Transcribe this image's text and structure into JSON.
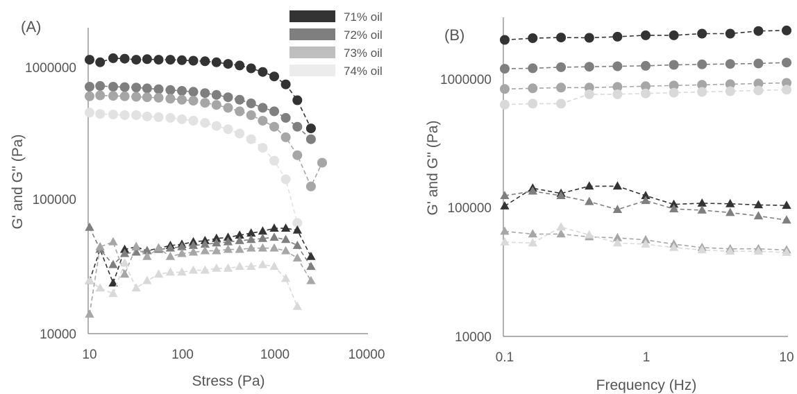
{
  "chart_data": [
    {
      "type": "scatter",
      "panel_label": "(A)",
      "xlabel": "Stress (Pa)",
      "ylabel": "G' and G'' (Pa)",
      "x_scale": "log",
      "y_scale": "log",
      "xlim": [
        10,
        10000
      ],
      "ylim": [
        10000,
        2000000
      ],
      "x_ticks": [
        10,
        100,
        1000,
        10000
      ],
      "x_tick_labels": [
        "10",
        "100",
        "1000",
        "10000"
      ],
      "y_ticks": [
        10000,
        100000,
        1000000
      ],
      "y_tick_labels": [
        "10000",
        "100000",
        "1000000"
      ],
      "grid": false,
      "legend_position": "top-right",
      "legend": [
        "71% oil",
        "72% oil",
        "73% oil",
        "74% oil"
      ],
      "series": [
        {
          "name": "71% oil",
          "modulus": "G'",
          "marker": "circle",
          "color": "#333333",
          "x": [
            10,
            13,
            18,
            24,
            32,
            42,
            56,
            75,
            100,
            133,
            178,
            237,
            316,
            422,
            562,
            750,
            1000,
            1334,
            1780,
            2500
          ],
          "y": [
            1150000,
            1100000,
            1180000,
            1170000,
            1150000,
            1160000,
            1150000,
            1150000,
            1140000,
            1130000,
            1120000,
            1100000,
            1070000,
            1040000,
            990000,
            930000,
            860000,
            750000,
            570000,
            350000
          ]
        },
        {
          "name": "72% oil",
          "modulus": "G'",
          "marker": "circle",
          "color": "#7f7f7f",
          "x": [
            10,
            13,
            18,
            24,
            32,
            42,
            56,
            75,
            100,
            133,
            178,
            237,
            316,
            422,
            562,
            750,
            1000,
            1334,
            1780,
            2500
          ],
          "y": [
            720000,
            730000,
            720000,
            715000,
            710000,
            700000,
            690000,
            680000,
            670000,
            660000,
            645000,
            625000,
            600000,
            575000,
            540000,
            500000,
            470000,
            420000,
            360000,
            290000
          ]
        },
        {
          "name": "73% oil",
          "modulus": "G'",
          "marker": "circle",
          "color": "#a6a6a6",
          "x": [
            10,
            13,
            18,
            24,
            32,
            42,
            56,
            75,
            100,
            133,
            178,
            237,
            316,
            422,
            562,
            750,
            1000,
            1334,
            1780,
            2500,
            3300
          ],
          "y": [
            610000,
            620000,
            615000,
            610000,
            605000,
            600000,
            595000,
            585000,
            575000,
            565000,
            545000,
            525000,
            500000,
            470000,
            440000,
            400000,
            360000,
            300000,
            220000,
            128000,
            193000
          ]
        },
        {
          "name": "74% oil",
          "modulus": "G'",
          "marker": "circle",
          "color": "#e2e2e2",
          "x": [
            10,
            13,
            18,
            24,
            32,
            42,
            56,
            75,
            100,
            133,
            178,
            237,
            316,
            422,
            562,
            750,
            1000,
            1334,
            1780
          ],
          "y": [
            460000,
            450000,
            445000,
            440000,
            440000,
            430000,
            425000,
            420000,
            410000,
            400000,
            385000,
            365000,
            345000,
            320000,
            290000,
            250000,
            200000,
            145000,
            68000
          ]
        },
        {
          "name": "71% oil",
          "modulus": "G''",
          "marker": "triangle",
          "color": "#333333",
          "x": [
            10,
            13,
            18,
            24,
            32,
            42,
            56,
            75,
            100,
            133,
            178,
            237,
            316,
            422,
            562,
            750,
            1000,
            1334,
            1780,
            2500
          ],
          "y": [
            25000,
            43000,
            24000,
            43000,
            45000,
            42000,
            44000,
            46000,
            47000,
            49000,
            50000,
            52000,
            53000,
            55000,
            57000,
            59000,
            62000,
            62000,
            60000,
            38000
          ]
        },
        {
          "name": "72% oil",
          "modulus": "G''",
          "marker": "triangle",
          "color": "#7f7f7f",
          "x": [
            10,
            13,
            18,
            24,
            32,
            42,
            56,
            75,
            100,
            133,
            178,
            237,
            316,
            422,
            562,
            750,
            1000,
            1334,
            1780,
            2500
          ],
          "y": [
            63000,
            43000,
            33000,
            40000,
            41000,
            42000,
            43000,
            44000,
            45000,
            46000,
            47000,
            48000,
            49000,
            50000,
            51000,
            52000,
            53000,
            51000,
            46000,
            32000
          ]
        },
        {
          "name": "73% oil",
          "modulus": "G''",
          "marker": "triangle",
          "color": "#a6a6a6",
          "x": [
            10,
            13,
            18,
            24,
            32,
            42,
            56,
            75,
            100,
            133,
            178,
            237,
            316,
            422,
            562,
            750,
            1000,
            1334,
            1780,
            2500
          ],
          "y": [
            14000,
            45000,
            49000,
            28000,
            45000,
            38000,
            44000,
            38000,
            40000,
            41000,
            42000,
            42000,
            43000,
            43000,
            44000,
            44000,
            44000,
            42000,
            37000,
            25000
          ]
        },
        {
          "name": "74% oil",
          "modulus": "G''",
          "marker": "triangle",
          "color": "#d9d9d9",
          "x": [
            10,
            13,
            18,
            24,
            32,
            42,
            56,
            75,
            100,
            133,
            178,
            237,
            316,
            422,
            562,
            750,
            1000,
            1334,
            1780
          ],
          "y": [
            25000,
            22000,
            20000,
            34000,
            22000,
            25000,
            28000,
            29000,
            29000,
            30000,
            30000,
            31000,
            31000,
            32000,
            32000,
            33000,
            32000,
            26000,
            16000
          ]
        }
      ]
    },
    {
      "type": "scatter",
      "panel_label": "(B)",
      "xlabel": "Frequency (Hz)",
      "ylabel": "G' and G'' (Pa)",
      "x_scale": "log",
      "y_scale": "log",
      "xlim": [
        0.1,
        10
      ],
      "ylim": [
        10000,
        2800000
      ],
      "x_ticks": [
        0.1,
        1,
        10
      ],
      "x_tick_labels": [
        "0.1",
        "1",
        "10"
      ],
      "y_ticks": [
        10000,
        100000,
        1000000
      ],
      "y_tick_labels": [
        "10000",
        "100000",
        "1000000"
      ],
      "grid": false,
      "series": [
        {
          "name": "71% oil",
          "modulus": "G'",
          "marker": "circle",
          "color": "#333333",
          "x": [
            0.1,
            0.158,
            0.251,
            0.398,
            0.631,
            1,
            1.585,
            2.512,
            3.981,
            6.31,
            10
          ],
          "y": [
            1880000,
            1940000,
            1960000,
            1950000,
            1990000,
            2040000,
            2040000,
            2100000,
            2100000,
            2200000,
            2220000
          ]
        },
        {
          "name": "72% oil",
          "modulus": "G'",
          "marker": "circle",
          "color": "#7f7f7f",
          "x": [
            0.1,
            0.158,
            0.251,
            0.398,
            0.631,
            1,
            1.585,
            2.512,
            3.981,
            6.31,
            10
          ],
          "y": [
            1130000,
            1140000,
            1160000,
            1170000,
            1180000,
            1190000,
            1210000,
            1220000,
            1230000,
            1240000,
            1260000
          ]
        },
        {
          "name": "73% oil",
          "modulus": "G'",
          "marker": "circle",
          "color": "#a6a6a6",
          "x": [
            0.1,
            0.158,
            0.251,
            0.398,
            0.631,
            1,
            1.585,
            2.512,
            3.981,
            6.31,
            10
          ],
          "y": [
            790000,
            800000,
            810000,
            810000,
            820000,
            830000,
            840000,
            850000,
            860000,
            870000,
            880000
          ]
        },
        {
          "name": "74% oil",
          "modulus": "G'",
          "marker": "circle",
          "color": "#d9d9d9",
          "x": [
            0.1,
            0.158,
            0.251,
            0.398,
            0.631,
            1,
            1.585,
            2.512,
            3.981,
            6.31,
            10
          ],
          "y": [
            600000,
            610000,
            610000,
            720000,
            720000,
            730000,
            740000,
            750000,
            760000,
            770000,
            780000
          ]
        },
        {
          "name": "71% oil",
          "modulus": "G''",
          "marker": "triangle",
          "color": "#333333",
          "x": [
            0.1,
            0.158,
            0.251,
            0.398,
            0.631,
            1,
            1.585,
            2.512,
            3.981,
            6.31,
            10
          ],
          "y": [
            100000,
            137000,
            125000,
            142000,
            142000,
            120000,
            103000,
            105000,
            104000,
            102000,
            101000
          ]
        },
        {
          "name": "72% oil",
          "modulus": "G''",
          "marker": "triangle",
          "color": "#7f7f7f",
          "x": [
            0.1,
            0.158,
            0.251,
            0.398,
            0.631,
            1,
            1.585,
            2.512,
            3.981,
            6.31,
            10
          ],
          "y": [
            120000,
            130000,
            120000,
            108000,
            94000,
            110000,
            95000,
            93000,
            89000,
            84000,
            78000
          ]
        },
        {
          "name": "73% oil",
          "modulus": "G''",
          "marker": "triangle",
          "color": "#a6a6a6",
          "x": [
            0.1,
            0.158,
            0.251,
            0.398,
            0.631,
            1,
            1.585,
            2.512,
            3.981,
            6.31,
            10
          ],
          "y": [
            64000,
            61000,
            61000,
            58000,
            57000,
            55000,
            51000,
            48000,
            47000,
            47000,
            46000
          ]
        },
        {
          "name": "74% oil",
          "modulus": "G''",
          "marker": "triangle",
          "color": "#d9d9d9",
          "x": [
            0.1,
            0.158,
            0.251,
            0.398,
            0.631,
            1,
            1.585,
            2.512,
            3.981,
            6.31,
            10
          ],
          "y": [
            53000,
            52000,
            69000,
            60000,
            52000,
            51000,
            48000,
            46000,
            45000,
            45000,
            44000
          ]
        }
      ]
    }
  ]
}
